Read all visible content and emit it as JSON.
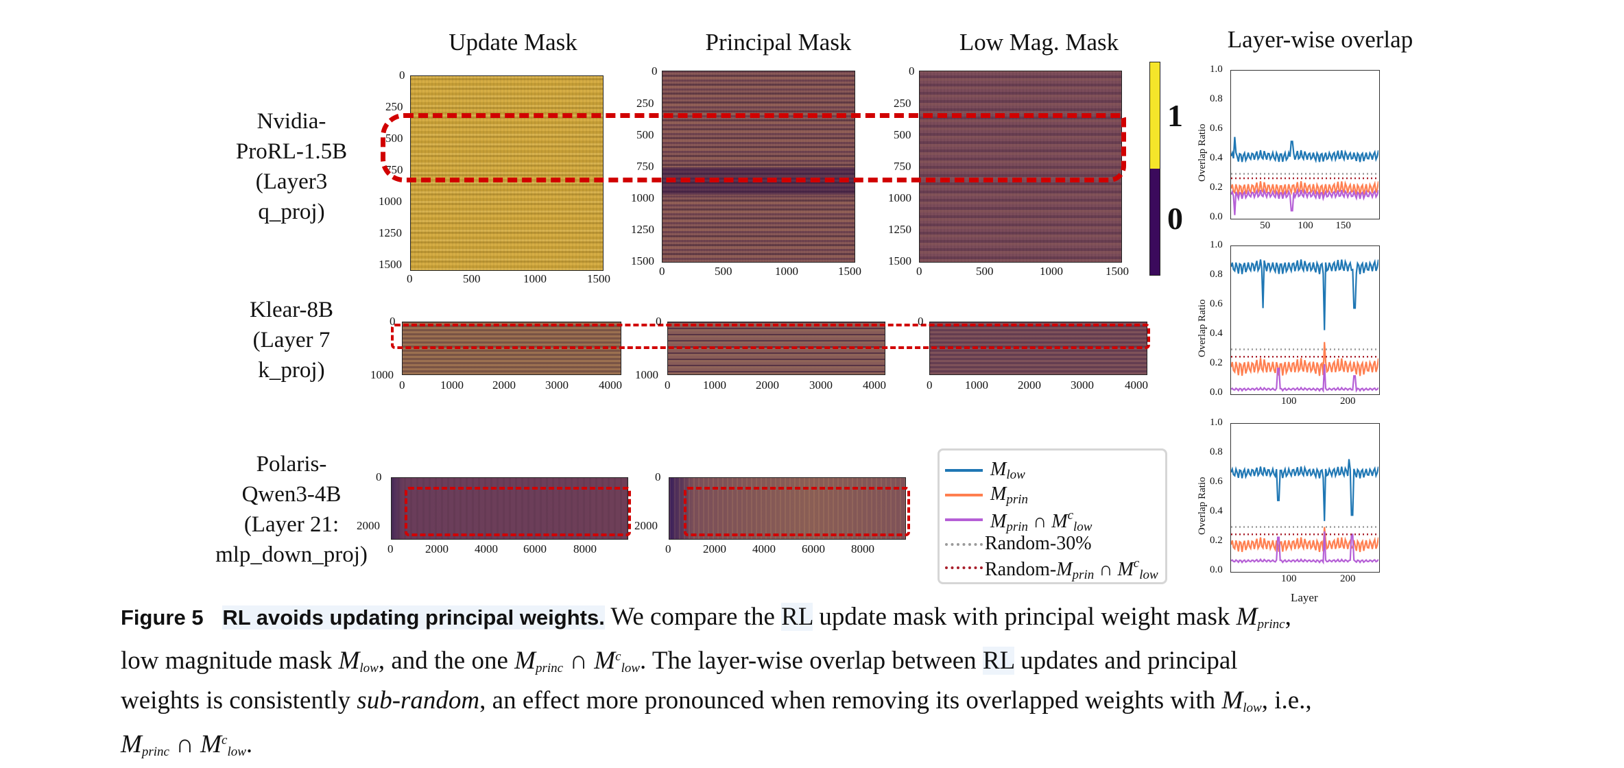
{
  "column_titles": {
    "update": "Update Mask",
    "principal": "Principal Mask",
    "low": "Low Mag. Mask",
    "overlap": "Layer-wise overlap"
  },
  "row_labels": {
    "row1": [
      "Nvidia-",
      "ProRL-1.5B",
      "(Layer3",
      "q_proj)"
    ],
    "row2": [
      "Klear-8B",
      "(Layer 7",
      "k_proj)"
    ],
    "row3": [
      "Polaris-",
      "Qwen3-4B",
      "(Layer 21:",
      "mlp_down_proj)"
    ]
  },
  "colorbar": {
    "top_label": "1",
    "bottom_label": "0",
    "top_color": "#f5e52a",
    "bottom_color": "#3b0a5c"
  },
  "heatmap_ticks": {
    "row1_y": [
      "0",
      "250",
      "500",
      "750",
      "1000",
      "1250",
      "1500"
    ],
    "row1_x": [
      "0",
      "500",
      "1000",
      "1500"
    ],
    "row2_y": [
      "0",
      "1000"
    ],
    "row2_x": [
      "0",
      "1000",
      "2000",
      "3000",
      "4000"
    ],
    "row3_y": [
      "0",
      "2000"
    ],
    "row3_x": [
      "0",
      "2000",
      "4000",
      "6000",
      "8000"
    ]
  },
  "legend": {
    "m_low": "M",
    "m_low_sub": "low",
    "m_prin": "M",
    "m_prin_sub": "prin",
    "m_inter_a": "M",
    "m_inter_sub_a": "prin",
    "m_inter_cap": " ∩ M",
    "m_inter_sup": "c",
    "m_inter_sub_b": "low",
    "random30": "Random-30%",
    "random_inter_prefix": "Random-",
    "colors": {
      "m_low": "#1f77b4",
      "m_prin": "#ff7f50",
      "m_inter": "#b55fd6",
      "random30": "#9a9a9a",
      "random_inter": "#a81e2a"
    }
  },
  "chart_data": [
    {
      "type": "line",
      "title": "Layer-wise overlap",
      "xlabel": "",
      "ylabel": "Overlap Ratio",
      "xlim": [
        0,
        195
      ],
      "ylim": [
        0.0,
        1.0
      ],
      "yticks": [
        "0.0",
        "0.2",
        "0.4",
        "0.6",
        "0.8",
        "1.0"
      ],
      "xticks": [
        50,
        100,
        150
      ],
      "xtick_labels": [
        "50",
        "100",
        "150"
      ],
      "series": [
        {
          "name": "M_low",
          "baseline": 0.42,
          "amp": 0.04,
          "spikes": [
            [
              5,
              0.55
            ],
            [
              80,
              0.52
            ]
          ],
          "dips": []
        },
        {
          "name": "M_prin",
          "baseline": 0.2,
          "amp": 0.05,
          "spikes": [],
          "dips": []
        },
        {
          "name": "M_prin ∩ M_low^c",
          "baseline": 0.16,
          "amp": 0.03,
          "spikes": [],
          "dips": [
            [
              5,
              0.02
            ],
            [
              80,
              0.05
            ]
          ]
        },
        {
          "name": "Random-30%",
          "constant": 0.3
        },
        {
          "name": "Random-M_prin ∩ M_low^c",
          "constant": 0.27
        }
      ]
    },
    {
      "type": "line",
      "title": "",
      "xlabel": "",
      "ylabel": "Overlap Ratio",
      "xlim": [
        0,
        250
      ],
      "ylim": [
        0.0,
        1.0
      ],
      "yticks": [
        "0.0",
        "0.2",
        "0.4",
        "0.6",
        "0.8",
        "1.0"
      ],
      "xticks": [
        100,
        200
      ],
      "xtick_labels": [
        "100",
        "200"
      ],
      "series": [
        {
          "name": "M_low",
          "baseline": 0.86,
          "amp": 0.05,
          "spikes": [],
          "dips": [
            [
              54,
              0.58
            ],
            [
              158,
              0.43
            ],
            [
              210,
              0.58
            ]
          ]
        },
        {
          "name": "M_prin",
          "baseline": 0.18,
          "amp": 0.06,
          "spikes": [
            [
              158,
              0.35
            ]
          ],
          "dips": []
        },
        {
          "name": "M_prin ∩ M_low^c",
          "baseline": 0.03,
          "amp": 0.01,
          "spikes": [
            [
              80,
              0.17
            ],
            [
              158,
              0.2
            ],
            [
              210,
              0.12
            ]
          ],
          "dips": []
        },
        {
          "name": "Random-30%",
          "constant": 0.3
        },
        {
          "name": "Random-M_prin ∩ M_low^c",
          "constant": 0.25
        }
      ]
    },
    {
      "type": "line",
      "title": "",
      "xlabel": "Layer",
      "ylabel": "Overlap Ratio",
      "xlim": [
        0,
        250
      ],
      "ylim": [
        0.0,
        1.0
      ],
      "yticks": [
        "0.0",
        "0.2",
        "0.4",
        "0.6",
        "0.8",
        "1.0"
      ],
      "xticks": [
        100,
        200
      ],
      "xtick_labels": [
        "100",
        "200"
      ],
      "series": [
        {
          "name": "M_low",
          "baseline": 0.67,
          "amp": 0.04,
          "spikes": [
            [
              200,
              0.76
            ]
          ],
          "dips": [
            [
              80,
              0.48
            ],
            [
              158,
              0.34
            ],
            [
              205,
              0.38
            ]
          ]
        },
        {
          "name": "M_prin",
          "baseline": 0.18,
          "amp": 0.05,
          "spikes": [
            [
              158,
              0.3
            ]
          ],
          "dips": []
        },
        {
          "name": "M_prin ∩ M_low^c",
          "baseline": 0.07,
          "amp": 0.01,
          "spikes": [
            [
              80,
              0.23
            ],
            [
              158,
              0.27
            ],
            [
              205,
              0.25
            ]
          ],
          "dips": []
        },
        {
          "name": "Random-30%",
          "constant": 0.3
        },
        {
          "name": "Random-M_prin ∩ M_low^c",
          "constant": 0.25
        }
      ]
    }
  ],
  "caption": {
    "fig_label": "Figure 5",
    "fig_title": "RL avoids updating principal weights.",
    "line1_a": " We compare the ",
    "rl1": "RL",
    "line1_b": " update mask with principal weight mask ",
    "m_princ": "M",
    "princ": "princ",
    "line1_c": ",",
    "line2_a": "low magnitude mask ",
    "low": "low",
    "line2_b": ", and the one ",
    "cap": " ∩ ",
    "c": "c",
    "line2_c": ". The layer-wise overlap between ",
    "rl2": "RL",
    "line2_d": " updates and principal",
    "line3_a": "weights is consistently ",
    "subrandom": "sub-random",
    "line3_b": ", an effect more pronounced when removing its overlapped weights with ",
    "line3_c": ", i.e.,",
    "line4_end": "."
  }
}
